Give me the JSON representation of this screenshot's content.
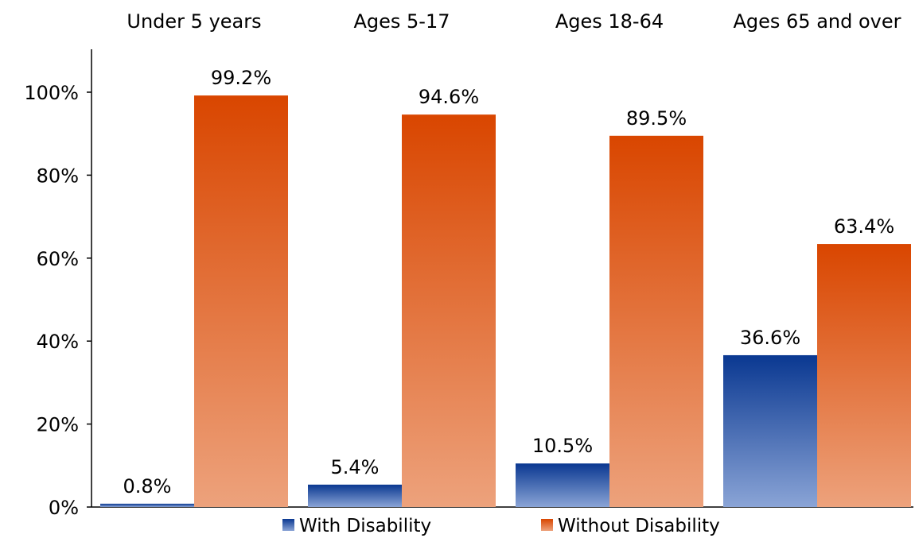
{
  "chart_data": {
    "type": "bar",
    "title": "",
    "xlabel": "",
    "ylabel": "",
    "categories": [
      "Under 5 years",
      "Ages 5-17",
      "Ages 18-64",
      "Ages 65 and over"
    ],
    "category_label_position": "top",
    "series": [
      {
        "name": "With Disability",
        "values": [
          0.8,
          5.4,
          10.5,
          36.6
        ],
        "labels": [
          "0.8%",
          "5.4%",
          "10.5%",
          "36.6%"
        ],
        "color_top": "#0a3891",
        "color_bottom": "#8aa4d6"
      },
      {
        "name": "Without Disability",
        "values": [
          99.2,
          94.6,
          89.5,
          63.4
        ],
        "labels": [
          "99.2%",
          "94.6%",
          "89.5%",
          "63.4%"
        ],
        "color_top": "#d94600",
        "color_bottom": "#eda27c"
      }
    ],
    "ylim": [
      0,
      100
    ],
    "yticks": [
      0,
      20,
      40,
      60,
      80,
      100
    ],
    "ytick_labels": [
      "0%",
      "20%",
      "40%",
      "60%",
      "80%",
      "100%"
    ],
    "grid": false,
    "legend_position": "bottom"
  }
}
